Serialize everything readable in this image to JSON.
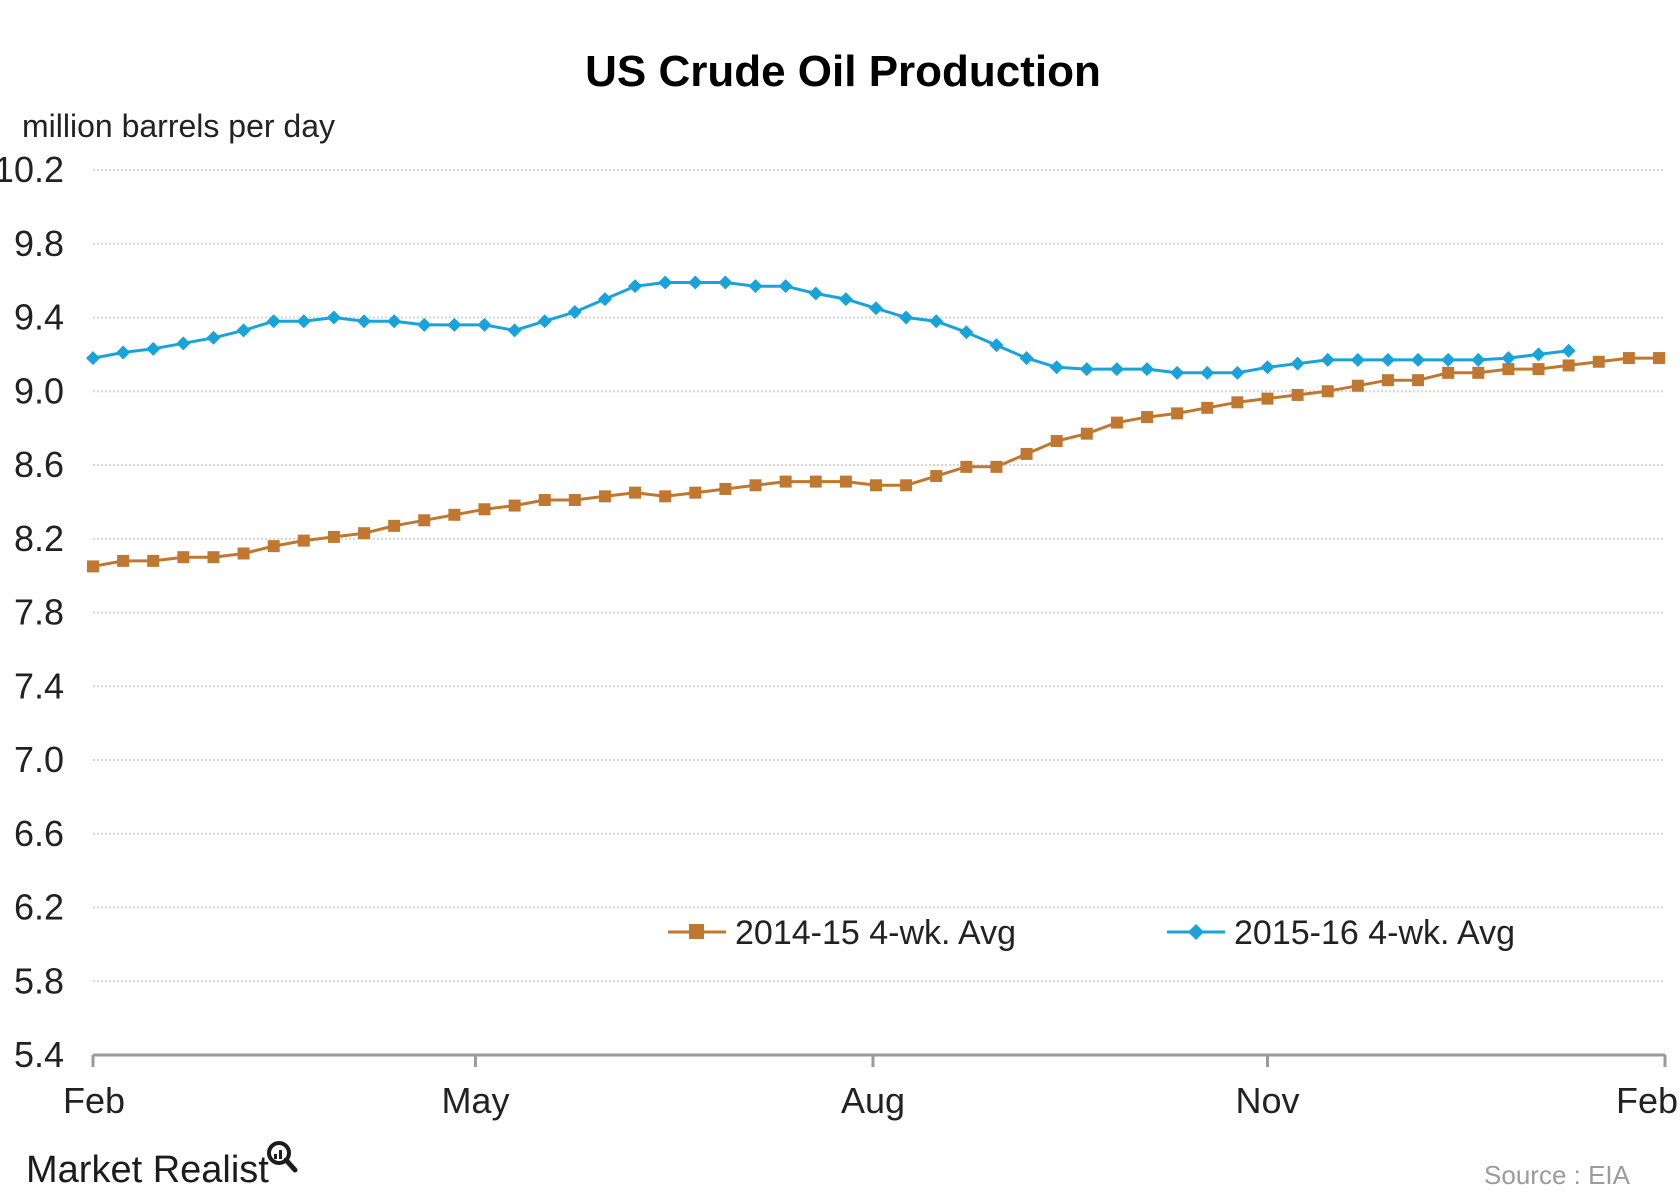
{
  "chart_data": {
    "type": "line",
    "title": "US Crude Oil Production",
    "ylabel": "million barrels per day",
    "xlabel": "",
    "ylim": [
      5.4,
      10.2
    ],
    "y_ticks": [
      "10.2",
      "9.8",
      "9.4",
      "9.0",
      "8.6",
      "8.2",
      "7.8",
      "7.4",
      "7.0",
      "6.6",
      "6.2",
      "5.8",
      "5.4"
    ],
    "x_ticks": [
      "Feb",
      "May",
      "Aug",
      "Nov",
      "Feb"
    ],
    "x_tick_weeks": [
      0,
      12.7,
      25.9,
      39.0,
      52.2
    ],
    "grid": true,
    "legend_position": "bottom-center",
    "colors": {
      "2014-15": "#c0772f",
      "2015-16": "#1aa3d9"
    },
    "series": [
      {
        "name": "2014-15 4-wk. Avg",
        "marker": "square",
        "color": "#c0772f",
        "week": [
          0,
          1,
          2,
          3,
          4,
          5,
          6,
          7,
          8,
          9,
          10,
          11,
          12,
          13,
          14,
          15,
          16,
          17,
          18,
          19,
          20,
          21,
          22,
          23,
          24,
          25,
          26,
          27,
          28,
          29,
          30,
          31,
          32,
          33,
          34,
          35,
          36,
          37,
          38,
          39,
          40,
          41,
          42,
          43,
          44,
          45,
          46,
          47,
          48,
          49,
          50,
          51,
          52
        ],
        "values": [
          8.05,
          8.08,
          8.08,
          8.1,
          8.1,
          8.12,
          8.16,
          8.19,
          8.21,
          8.23,
          8.27,
          8.3,
          8.33,
          8.36,
          8.38,
          8.41,
          8.41,
          8.43,
          8.45,
          8.43,
          8.45,
          8.47,
          8.49,
          8.51,
          8.51,
          8.51,
          8.49,
          8.49,
          8.54,
          8.59,
          8.59,
          8.66,
          8.73,
          8.77,
          8.83,
          8.86,
          8.88,
          8.91,
          8.94,
          8.96,
          8.98,
          9.0,
          9.03,
          9.06,
          9.06,
          9.1,
          9.1,
          9.12,
          9.12,
          9.14,
          9.16,
          9.18,
          9.18
        ]
      },
      {
        "name": "2015-16 4-wk. Avg",
        "marker": "diamond",
        "color": "#1aa3d9",
        "week": [
          0,
          1,
          2,
          3,
          4,
          5,
          6,
          7,
          8,
          9,
          10,
          11,
          12,
          13,
          14,
          15,
          16,
          17,
          18,
          19,
          20,
          21,
          22,
          23,
          24,
          25,
          26,
          27,
          28,
          29,
          30,
          31,
          32,
          33,
          34,
          35,
          36,
          37,
          38,
          39,
          40,
          41,
          42,
          43,
          44,
          45,
          46,
          47,
          48,
          49
        ],
        "values": [
          9.18,
          9.21,
          9.23,
          9.26,
          9.29,
          9.33,
          9.38,
          9.38,
          9.4,
          9.38,
          9.38,
          9.36,
          9.36,
          9.36,
          9.33,
          9.38,
          9.43,
          9.5,
          9.57,
          9.59,
          9.59,
          9.59,
          9.57,
          9.57,
          9.53,
          9.5,
          9.45,
          9.4,
          9.38,
          9.32,
          9.25,
          9.18,
          9.13,
          9.12,
          9.12,
          9.12,
          9.1,
          9.1,
          9.1,
          9.13,
          9.15,
          9.17,
          9.17,
          9.17,
          9.17,
          9.17,
          9.17,
          9.18,
          9.2,
          9.22
        ]
      }
    ]
  },
  "brand": {
    "name": "Market Realist",
    "logo_icon": "magnifier-chart-icon"
  },
  "source": "Source  : EIA"
}
